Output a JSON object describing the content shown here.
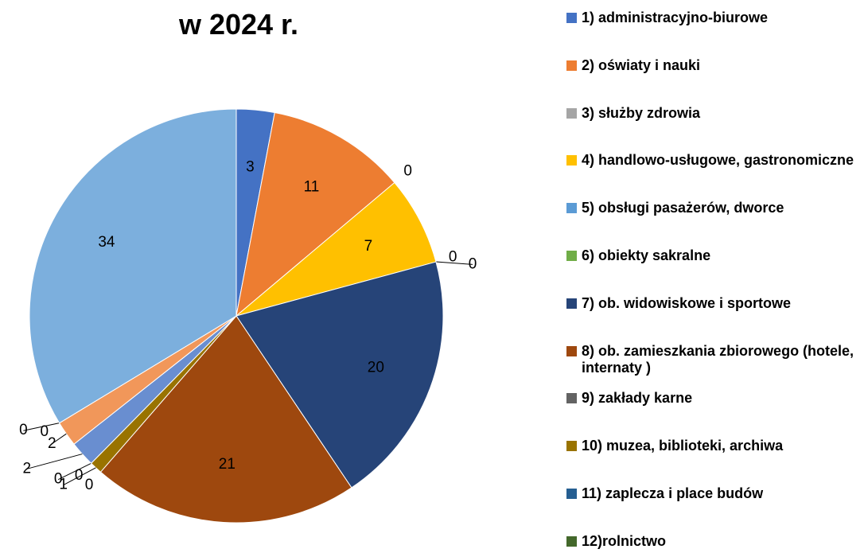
{
  "chart_data": {
    "type": "pie",
    "title": "w 2024 r.",
    "categories": [
      "1) administracyjno-biurowe",
      "2) oświaty i nauki",
      "3) służby zdrowia",
      "4) handlowo-usługowe, gastronomiczne",
      "5) obsługi pasażerów, dworce",
      "6) obiekty sakralne",
      "7) ob. widowiskowe i sportowe",
      "8) ob. zamieszkania zbiorowego (hotele, internaty )",
      "9) zakłady karne",
      "10) muzea, biblioteki, archiwa",
      "11) zaplecza i place budów",
      "12)rolnictwo",
      null,
      null,
      null,
      null,
      null
    ],
    "values": [
      3,
      11,
      0,
      7,
      0,
      0,
      20,
      21,
      0,
      1,
      0,
      0,
      2,
      2,
      0,
      0,
      34
    ],
    "colors": [
      "#4472c4",
      "#ed7d31",
      "#a5a5a5",
      "#ffc000",
      "#5b9bd5",
      "#70ad47",
      "#264478",
      "#9e480e",
      "#636363",
      "#997300",
      "#255e91",
      "#43682b",
      "#698ed0",
      "#f1975a",
      "#b7b7b7",
      "#ffcd33",
      "#7cafdd"
    ]
  }
}
